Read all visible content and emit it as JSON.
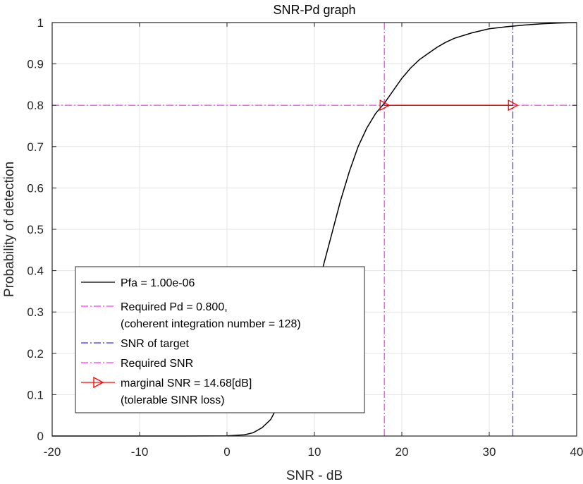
{
  "chart_data": {
    "type": "line",
    "title": "SNR-Pd graph",
    "xlabel": "SNR - dB",
    "ylabel": "Probability of detection",
    "xlim": [
      -20,
      40
    ],
    "ylim": [
      0,
      1
    ],
    "xticks": [
      -20,
      -10,
      0,
      10,
      20,
      30,
      40
    ],
    "yticks": [
      0,
      0.1,
      0.2,
      0.3,
      0.4,
      0.5,
      0.6,
      0.7,
      0.8,
      0.9,
      1
    ],
    "xtick_labels": [
      "-20",
      "-10",
      "0",
      "10",
      "20",
      "30",
      "40"
    ],
    "ytick_labels": [
      "0",
      "0.1",
      "0.2",
      "0.3",
      "0.4",
      "0.5",
      "0.6",
      "0.7",
      "0.8",
      "0.9",
      "1"
    ],
    "grid": true,
    "legend_position": "bottom-left",
    "series": [
      {
        "name": "Pfa = 1.00e-06",
        "color": "#000000",
        "style": "solid",
        "x": [
          -20,
          -15,
          -10,
          -5,
          0,
          2,
          3,
          4,
          5,
          6,
          7,
          8,
          9,
          10,
          11,
          12,
          13,
          14,
          15,
          16,
          17,
          18,
          19,
          20,
          21,
          22,
          23,
          24,
          25,
          26,
          28,
          30,
          32,
          34,
          36,
          38,
          40
        ],
        "y": [
          0,
          0,
          0,
          0,
          0.0003,
          0.003,
          0.008,
          0.02,
          0.04,
          0.08,
          0.13,
          0.19,
          0.26,
          0.33,
          0.41,
          0.49,
          0.57,
          0.64,
          0.7,
          0.745,
          0.78,
          0.805,
          0.835,
          0.865,
          0.89,
          0.91,
          0.925,
          0.94,
          0.952,
          0.962,
          0.975,
          0.985,
          0.99,
          0.994,
          0.997,
          0.999,
          1.0
        ]
      },
      {
        "name": "Required Pd = 0.800,",
        "name_line2": "(coherent integration number = 128)",
        "color": "#ff33ff",
        "style": "dashdot",
        "orientation": "horizontal",
        "y": 0.8
      },
      {
        "name": "SNR of target",
        "color": "#3333ff",
        "style": "dashdot",
        "orientation": "vertical",
        "x": 32.7
      },
      {
        "name": "Required SNR",
        "color": "#ff33ff",
        "style": "dashdot",
        "orientation": "vertical",
        "x": 18.0
      },
      {
        "name": "marginal SNR = 14.68[dB]",
        "name_line2": "(tolerable SINR loss)",
        "color": "#ff0000",
        "style": "solid",
        "marker": "triangle-right",
        "x": [
          18.0,
          32.68
        ],
        "y": [
          0.8,
          0.8
        ]
      }
    ]
  }
}
